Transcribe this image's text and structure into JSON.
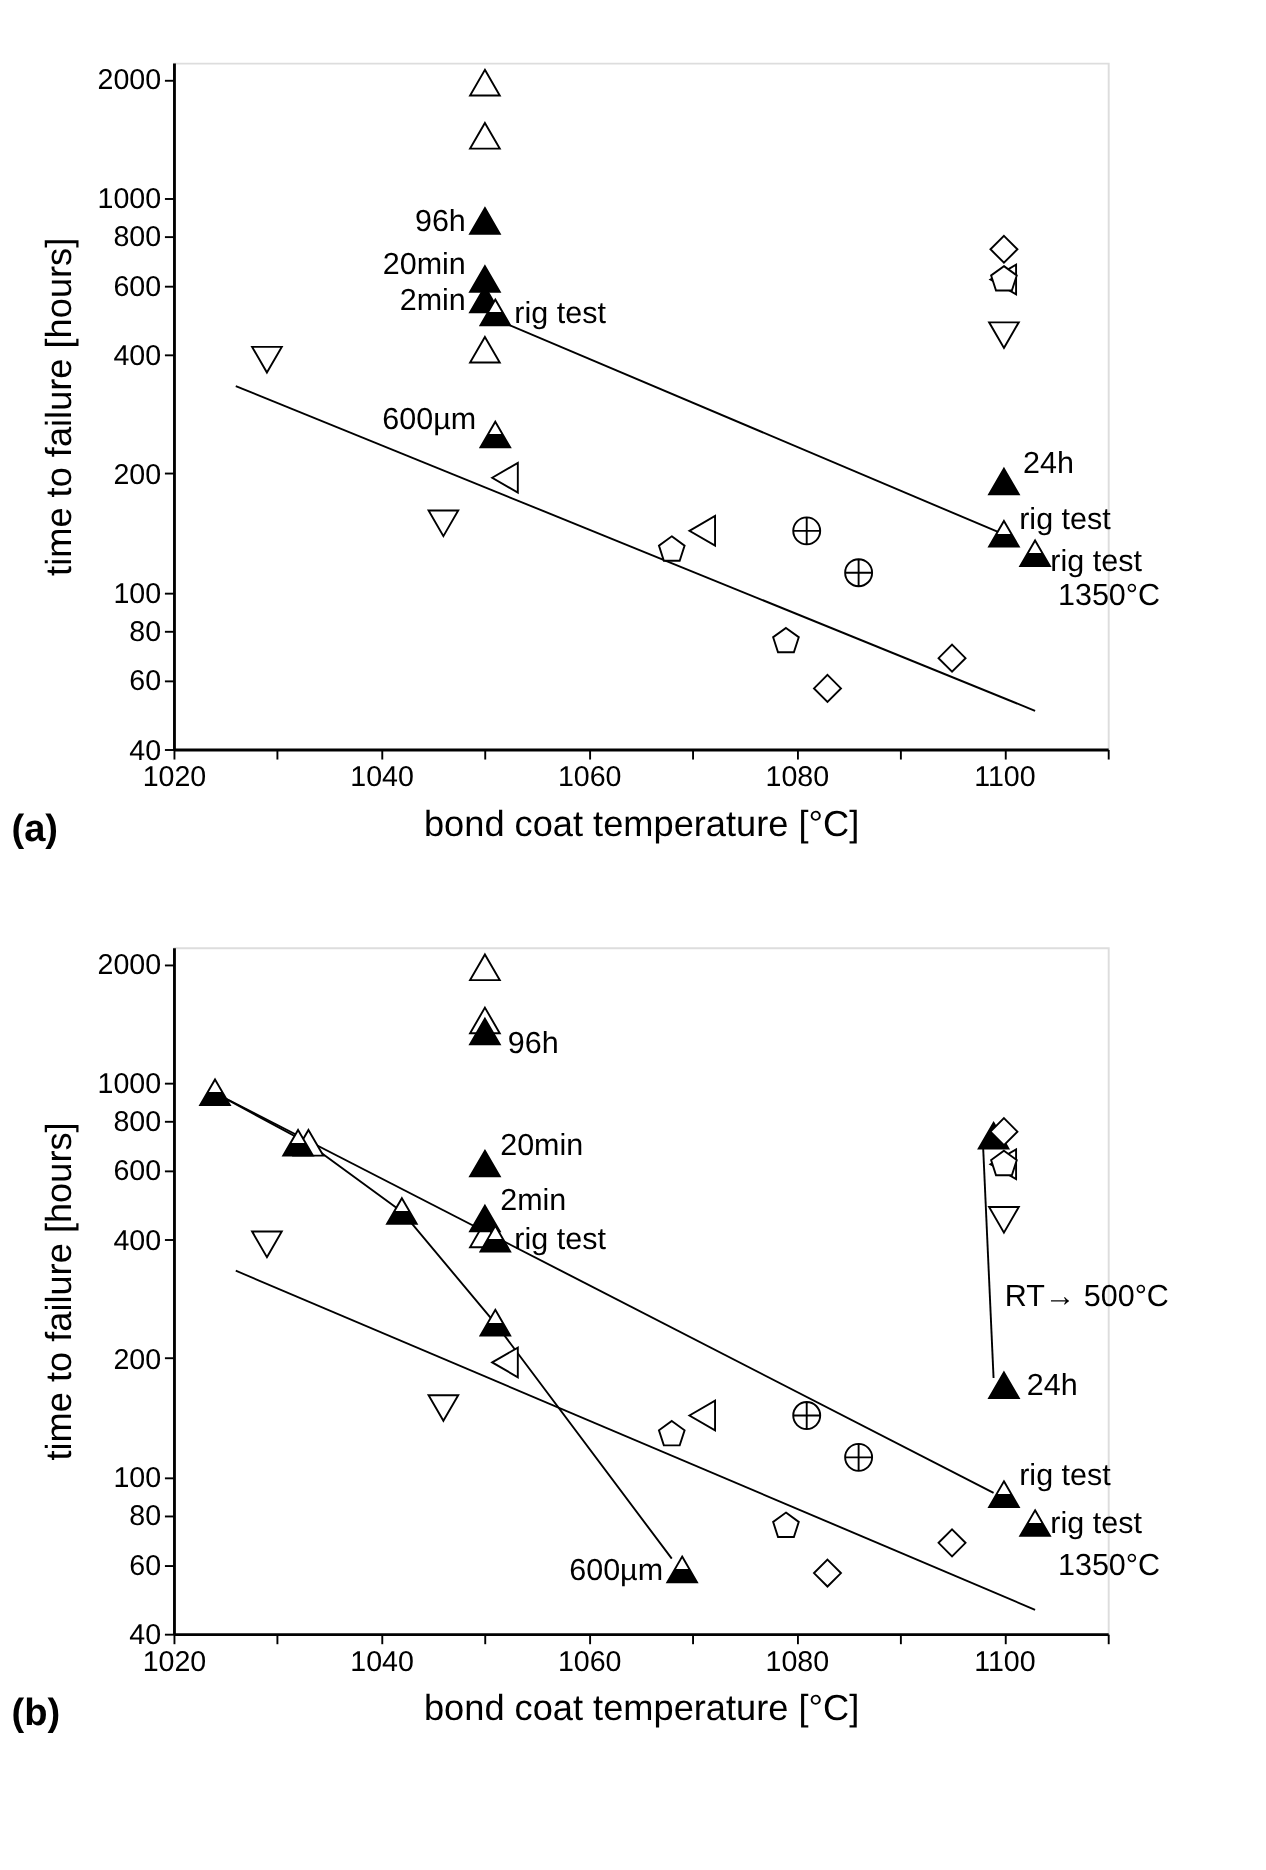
{
  "chart_data": [
    {
      "type": "scatter",
      "xlabel": "bond coat temperature [°C]",
      "ylabel": "time to failure [hours]",
      "log": "y",
      "xlim": [
        1020,
        1110
      ],
      "xticks": [
        1020,
        {
          "value": 1030,
          "label": null
        },
        1040,
        {
          "value": 1050,
          "label": null
        },
        1060,
        {
          "value": 1070,
          "label": null
        },
        1080,
        {
          "value": 1090,
          "label": null
        },
        1100,
        {
          "value": 1110,
          "label": null
        }
      ],
      "ylim": [
        40,
        2200
      ],
      "yticks": [
        40,
        60,
        80,
        100,
        200,
        400,
        600,
        800,
        1000,
        2000
      ],
      "series": [
        {
          "type": "scatter",
          "marker": "triangle",
          "color": "#ffffff",
          "x": [
            1050,
            1050,
            1050
          ],
          "values": [
            1950,
            1430,
            410
          ]
        },
        {
          "type": "scatter",
          "marker": "triangle",
          "color": "#000000",
          "x": [
            1050,
            1050,
            1050,
            1100
          ],
          "values": [
            870,
            620,
            550,
            190
          ]
        },
        {
          "type": "scatter",
          "marker": "triangle-half",
          "color": "#000000",
          "x": [
            1051,
            1051,
            1100,
            1103
          ],
          "values": [
            510,
            250,
            140,
            125
          ]
        },
        {
          "type": "scatter",
          "marker": "triangle-down",
          "color": "#ffffff",
          "x": [
            1029,
            1046,
            1100
          ],
          "values": [
            390,
            150,
            450
          ]
        },
        {
          "type": "scatter",
          "marker": "triangle-left",
          "color": "#ffffff",
          "x": [
            1052,
            1071,
            1100
          ],
          "values": [
            195,
            143,
            620
          ]
        },
        {
          "type": "scatter",
          "color": "#ffffff",
          "x": [
            1068,
            1079,
            1100
          ],
          "values": [
            128,
            75,
            620
          ]
        },
        {
          "type": "scatter",
          "marker": "cross",
          "color": "#ffffff",
          "x": [
            1081,
            1086
          ],
          "values": [
            143,
            112
          ]
        },
        {
          "type": "scatter",
          "marker": "diamond",
          "color": "#ffffff",
          "x": [
            1083,
            1095,
            1100
          ],
          "values": [
            57,
            68,
            740
          ]
        },
        {
          "type": "line",
          "line_style": "solid",
          "color": "#000000",
          "x": [
            1026,
            1103
          ],
          "values": [
            333,
            50
          ]
        },
        {
          "type": "line",
          "line_style": "solid",
          "color": "#000000",
          "x": [
            1052,
            1100
          ],
          "values": [
            480,
            140
          ]
        }
      ],
      "annotations": [
        {
          "text": "96h",
          "x": 1050,
          "y": 870
        },
        {
          "text": "20min",
          "x": 1050,
          "y": 620
        },
        {
          "text": "2min",
          "x": 1050,
          "y": 550
        },
        {
          "text": "rig test",
          "x": 1051,
          "y": 510
        },
        {
          "text": "600µm",
          "x": 1051,
          "y": 250
        },
        {
          "text": "24h",
          "x": 1100,
          "y": 190
        },
        {
          "text": "rig test",
          "x": 1100,
          "y": 140
        },
        {
          "text": "rig test",
          "x": 1103,
          "y": 125
        },
        {
          "text": "1350°C",
          "x": 1103,
          "y": 125
        },
        "(a)"
      ]
    },
    {
      "type": "scatter",
      "xlabel": "bond coat temperature [°C]",
      "ylabel": "time to failure [hours]",
      "log": "y",
      "xlim": [
        1020,
        1110
      ],
      "xticks": [
        1020,
        {
          "value": 1030,
          "label": null
        },
        1040,
        {
          "value": 1050,
          "label": null
        },
        1060,
        {
          "value": 1070,
          "label": null
        },
        1080,
        {
          "value": 1090,
          "label": null
        },
        1100,
        {
          "value": 1110,
          "label": null
        }
      ],
      "ylim": [
        40,
        2200
      ],
      "yticks": [
        40,
        60,
        80,
        100,
        200,
        400,
        600,
        800,
        1000,
        2000
      ],
      "series": [
        {
          "type": "line",
          "line_style": "solid",
          "color": "#000000",
          "x": [
            1026,
            1103
          ],
          "values": [
            333,
            46
          ]
        },
        {
          "type": "line",
          "line_style": "solid",
          "color": "#000000",
          "x": [
            1024,
            1099
          ],
          "values": [
            940,
            91
          ]
        },
        {
          "type": "line",
          "line_style": "solid",
          "color": "#000000",
          "x": [
            1024,
            1033,
            1042,
            1051,
            1068
          ],
          "values": [
            940,
            700,
            470,
            245,
            62
          ]
        },
        {
          "type": "line",
          "line_style": "solid",
          "color": "#000000",
          "x": [
            1099,
            1098
          ],
          "values": [
            178,
            680
          ]
        },
        {
          "type": "scatter",
          "marker": "triangle",
          "color": "#ffffff",
          "x": [
            1050,
            1050,
            1050,
            1033
          ],
          "values": [
            1950,
            1430,
            410,
            700
          ]
        },
        {
          "type": "scatter",
          "marker": "triangle",
          "color": "#000000",
          "x": [
            1050,
            1050,
            1050,
            1099,
            1100
          ],
          "values": [
            1340,
            620,
            450,
            730,
            170
          ]
        },
        {
          "type": "scatter",
          "marker": "triangle-half",
          "color": "#000000",
          "x": [
            1024,
            1032,
            1042,
            1051,
            1051,
            1069,
            1100,
            1103
          ],
          "values": [
            940,
            700,
            470,
            400,
            245,
            58,
            90,
            76
          ]
        },
        {
          "type": "scatter",
          "marker": "triangle-down",
          "color": "#ffffff",
          "x": [
            1029,
            1046,
            1100
          ],
          "values": [
            390,
            150,
            450
          ]
        },
        {
          "type": "scatter",
          "marker": "triangle-left",
          "color": "#ffffff",
          "x": [
            1052,
            1071,
            1100
          ],
          "values": [
            195,
            143,
            620
          ]
        },
        {
          "type": "scatter",
          "color": "#ffffff",
          "x": [
            1068,
            1079,
            1100
          ],
          "values": [
            128,
            75,
            620
          ]
        },
        {
          "type": "scatter",
          "marker": "cross",
          "color": "#ffffff",
          "x": [
            1081,
            1086
          ],
          "values": [
            143,
            112
          ]
        },
        {
          "type": "scatter",
          "marker": "diamond",
          "color": "#ffffff",
          "x": [
            1083,
            1095,
            1100
          ],
          "values": [
            57,
            68,
            750
          ]
        }
      ],
      "annotations": [
        {
          "text": "96h",
          "x": 1050,
          "y": 1340
        },
        {
          "text": "20min",
          "x": 1050,
          "y": 620
        },
        {
          "text": "2min",
          "x": 1050,
          "y": 450
        },
        {
          "text": "rig test",
          "x": 1051,
          "y": 400
        },
        {
          "text": "600µm",
          "x": 1069,
          "y": 58
        },
        {
          "text": "24h",
          "x": 1100,
          "y": 170
        },
        {
          "text": "RT→ 500°C",
          "x": 1098.6,
          "y": 287
        },
        {
          "text": "rig test",
          "x": 1100,
          "y": 90
        },
        {
          "text": "rig test",
          "x": 1103,
          "y": 76
        },
        {
          "text": "1350°C",
          "x": 1103,
          "y": 76
        },
        "(b)"
      ]
    }
  ]
}
